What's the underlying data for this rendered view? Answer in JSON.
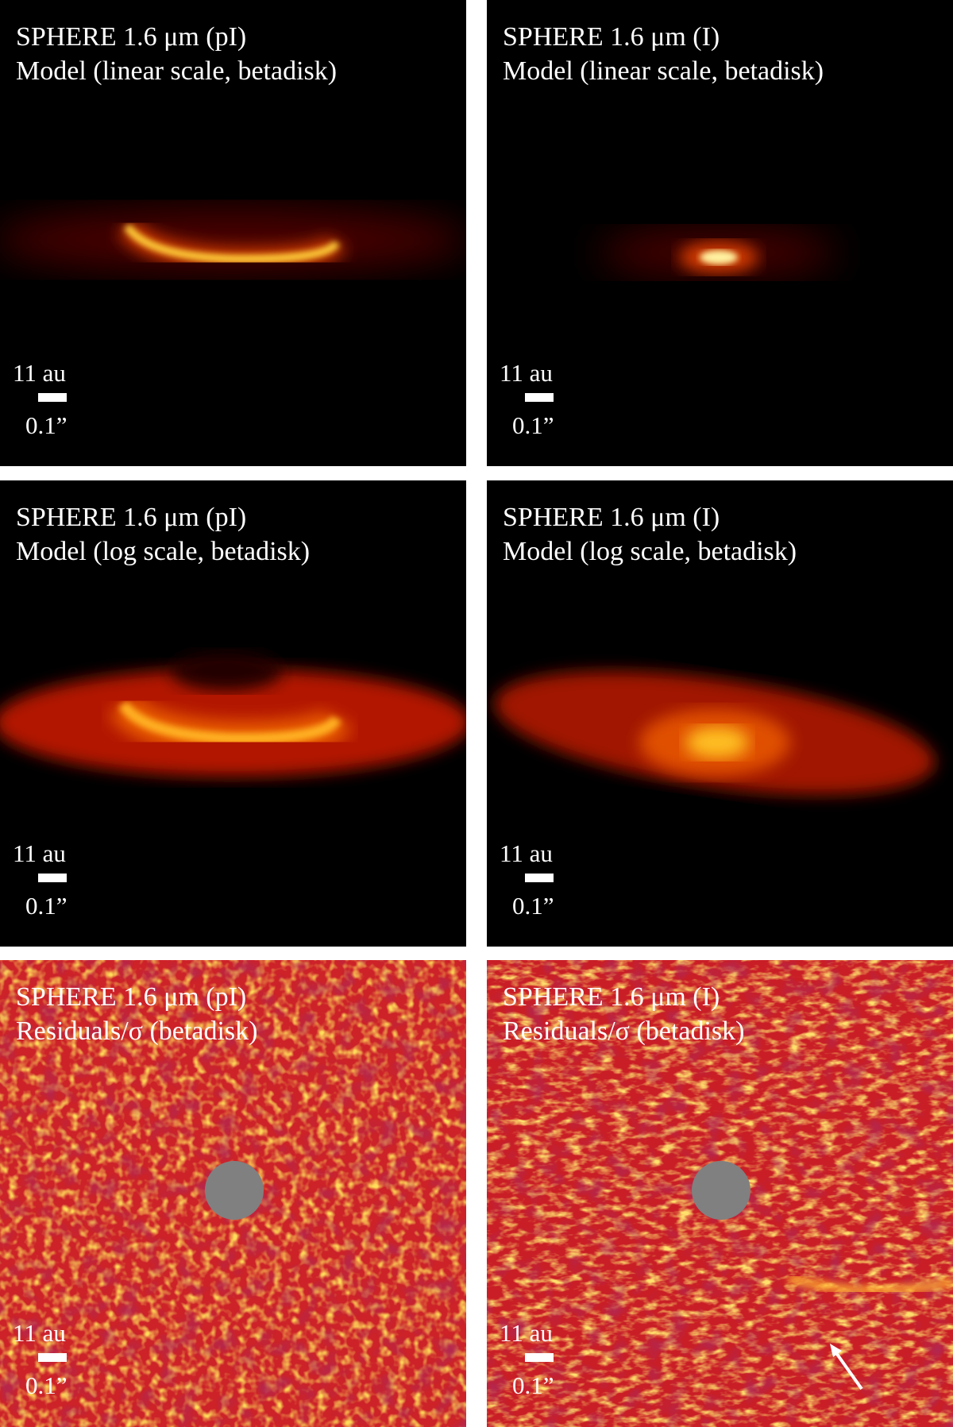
{
  "panels": [
    {
      "title": "SPHERE 1.6 μm (pI)",
      "subtitle": "Model (linear scale, betadisk)",
      "scale_distance": "11 au",
      "scale_angle": "0.1”"
    },
    {
      "title": "SPHERE 1.6 μm (I)",
      "subtitle": "Model (linear scale, betadisk)",
      "scale_distance": "11 au",
      "scale_angle": "0.1”"
    },
    {
      "title": "SPHERE 1.6 μm (pI)",
      "subtitle": "Model (log scale, betadisk)",
      "scale_distance": "11 au",
      "scale_angle": "0.1”"
    },
    {
      "title": "SPHERE 1.6 μm (I)",
      "subtitle": "Model (log scale, betadisk)",
      "scale_distance": "11 au",
      "scale_angle": "0.1”"
    },
    {
      "title": "SPHERE 1.6 μm (pI)",
      "subtitle": "Residuals/σ (betadisk)",
      "scale_distance": "11 au",
      "scale_angle": "0.1”"
    },
    {
      "title": "SPHERE 1.6 μm (I)",
      "subtitle": "Residuals/σ (betadisk)",
      "scale_distance": "11 au",
      "scale_angle": "0.1”"
    }
  ]
}
